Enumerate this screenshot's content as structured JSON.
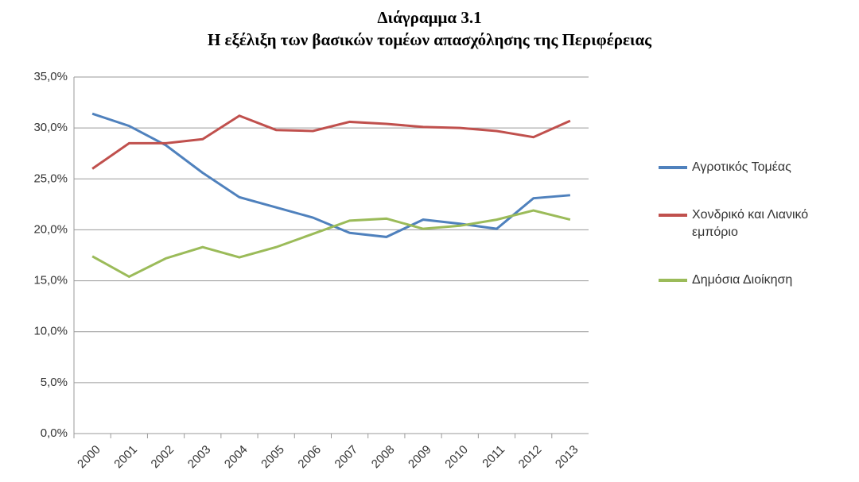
{
  "chart_data": {
    "type": "line",
    "title": "Διάγραμμα 3.1",
    "subtitle": "Η εξέλιξη των βασικών τομέων απασχόλησης της Περιφέρειας",
    "categories": [
      "2000",
      "2001",
      "2002",
      "2003",
      "2004",
      "2005",
      "2006",
      "2007",
      "2008",
      "2009",
      "2010",
      "2011",
      "2012",
      "2013"
    ],
    "series": [
      {
        "name": "Αγροτικός Τομέας",
        "color": "#4f81bd",
        "values": [
          31.4,
          30.2,
          28.3,
          25.6,
          23.2,
          22.2,
          21.2,
          19.7,
          19.3,
          21.0,
          20.6,
          20.1,
          23.1,
          23.4
        ]
      },
      {
        "name": "Χονδρικό και Λιανικό εμπόριο",
        "color": "#c0504d",
        "values": [
          26.0,
          28.5,
          28.5,
          28.9,
          31.2,
          29.8,
          29.7,
          30.6,
          30.4,
          30.1,
          30.0,
          29.7,
          29.1,
          30.7
        ]
      },
      {
        "name": "Δημόσια Διοίκηση",
        "color": "#9bbb59",
        "values": [
          17.4,
          15.4,
          17.2,
          18.3,
          17.3,
          18.3,
          19.6,
          20.9,
          21.1,
          20.1,
          20.4,
          21.0,
          21.9,
          21.0
        ]
      }
    ],
    "ylim": [
      0,
      35
    ],
    "yticks": [
      {
        "value": 0,
        "label": "0,0%"
      },
      {
        "value": 5,
        "label": "5,0%"
      },
      {
        "value": 10,
        "label": "10,0%"
      },
      {
        "value": 15,
        "label": "15,0%"
      },
      {
        "value": 20,
        "label": "20,0%"
      },
      {
        "value": 25,
        "label": "25,0%"
      },
      {
        "value": 30,
        "label": "30,0%"
      },
      {
        "value": 35,
        "label": "35,0%"
      }
    ],
    "grid": true
  }
}
